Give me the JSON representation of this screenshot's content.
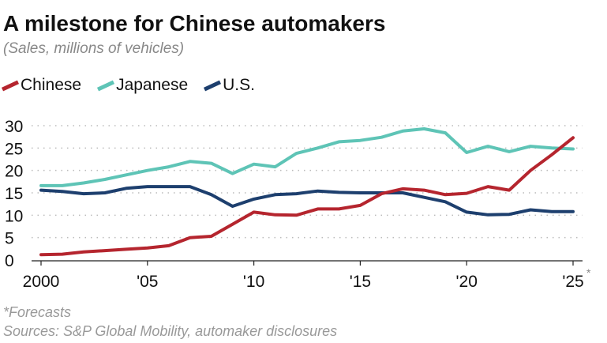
{
  "chart_data": {
    "type": "line",
    "title": "A milestone for Chinese automakers",
    "subtitle": "(Sales, millions of vehicles)",
    "x": [
      2000,
      2001,
      2002,
      2003,
      2004,
      2005,
      2006,
      2007,
      2008,
      2009,
      2010,
      2011,
      2012,
      2013,
      2014,
      2015,
      2016,
      2017,
      2018,
      2019,
      2020,
      2021,
      2022,
      2023,
      2024,
      2025
    ],
    "xtick_values": [
      2000,
      2005,
      2010,
      2015,
      2020,
      2025
    ],
    "xtick_labels": [
      "2000",
      "'05",
      "'10",
      "'15",
      "'20",
      "'25"
    ],
    "xtick_annotation": "*",
    "ytick_values": [
      0,
      5,
      10,
      15,
      20,
      25,
      30
    ],
    "ytick_labels": [
      "0",
      "5",
      "10",
      "15",
      "20",
      "25",
      "30"
    ],
    "xlim": [
      2000,
      2025
    ],
    "ylim": [
      0,
      30
    ],
    "grid": "horizontal dotted",
    "legend_placement": "top-left",
    "series": [
      {
        "name": "Chinese",
        "color": "#b5252e",
        "values": [
          1.2,
          1.3,
          1.8,
          2.1,
          2.4,
          2.7,
          3.2,
          5.0,
          5.3,
          8.0,
          10.7,
          10.1,
          10.0,
          11.4,
          11.4,
          12.2,
          14.8,
          15.9,
          15.6,
          14.6,
          14.9,
          16.4,
          15.6,
          20.0,
          23.5,
          27.3
        ]
      },
      {
        "name": "Japanese",
        "color": "#5ec4b6",
        "values": [
          16.6,
          16.6,
          17.2,
          18.0,
          19.0,
          20.0,
          20.8,
          22.0,
          21.6,
          19.3,
          21.4,
          20.8,
          23.8,
          25.0,
          26.4,
          26.7,
          27.4,
          28.8,
          29.3,
          28.4,
          24.0,
          25.4,
          24.2,
          25.4,
          25.0,
          24.8
        ]
      },
      {
        "name": "U.S.",
        "color": "#1d3f6e",
        "values": [
          15.6,
          15.3,
          14.8,
          15.0,
          16.0,
          16.4,
          16.4,
          16.4,
          14.6,
          12.0,
          13.6,
          14.6,
          14.8,
          15.4,
          15.1,
          15.0,
          15.0,
          15.0,
          14.0,
          13.0,
          10.7,
          10.1,
          10.2,
          11.2,
          10.8,
          10.8
        ]
      }
    ],
    "footnote": "*Forecasts",
    "source": "Sources: S&P Global Mobility, automaker disclosures"
  }
}
